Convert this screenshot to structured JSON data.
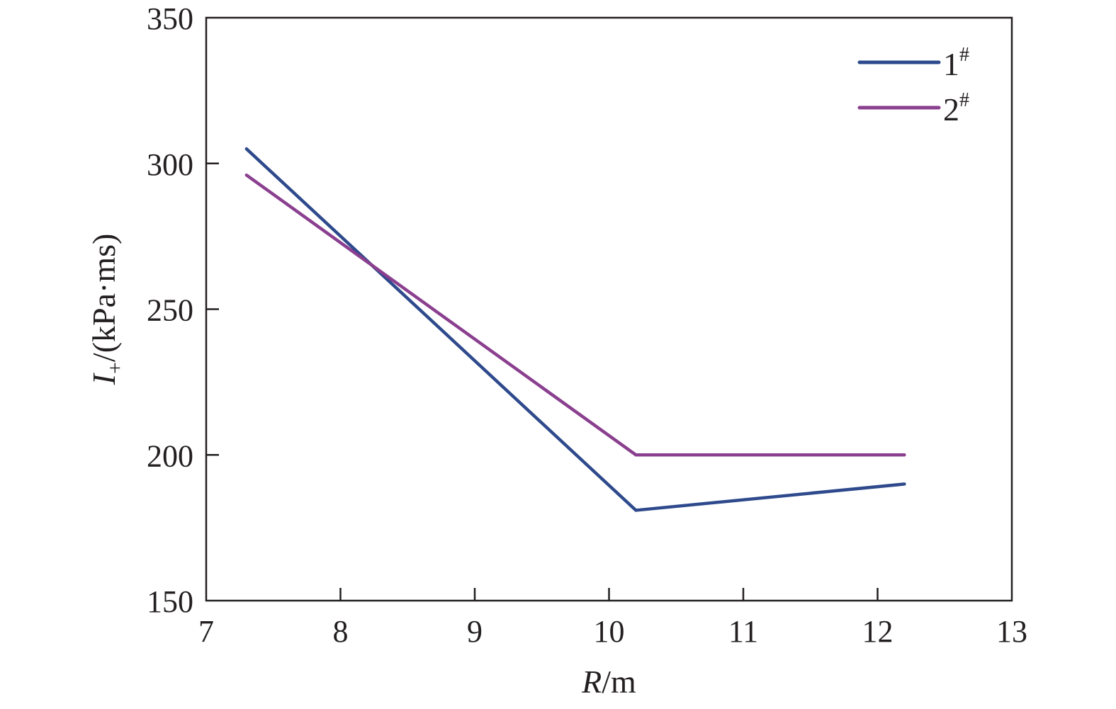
{
  "chart_data": {
    "type": "line",
    "xlabel": {
      "var": "R",
      "unit": "/m"
    },
    "ylabel": {
      "var": "I",
      "sub": "+",
      "unit": "/(kPa·ms)"
    },
    "xlim": [
      7,
      13
    ],
    "ylim": [
      150,
      350
    ],
    "xticks": [
      "7",
      "8",
      "9",
      "10",
      "11",
      "12",
      "13"
    ],
    "yticks": [
      "150",
      "200",
      "250",
      "300",
      "350"
    ],
    "grid": false,
    "legend_position": "top-right",
    "series": [
      {
        "name": "1",
        "sup": "#",
        "color": "#2e4a8c",
        "x": [
          7.3,
          10.2,
          12.2
        ],
        "y": [
          305,
          181,
          190
        ]
      },
      {
        "name": "2",
        "sup": "#",
        "color": "#8a3f8f",
        "x": [
          7.3,
          10.2,
          12.2
        ],
        "y": [
          296,
          200,
          200
        ]
      }
    ]
  }
}
